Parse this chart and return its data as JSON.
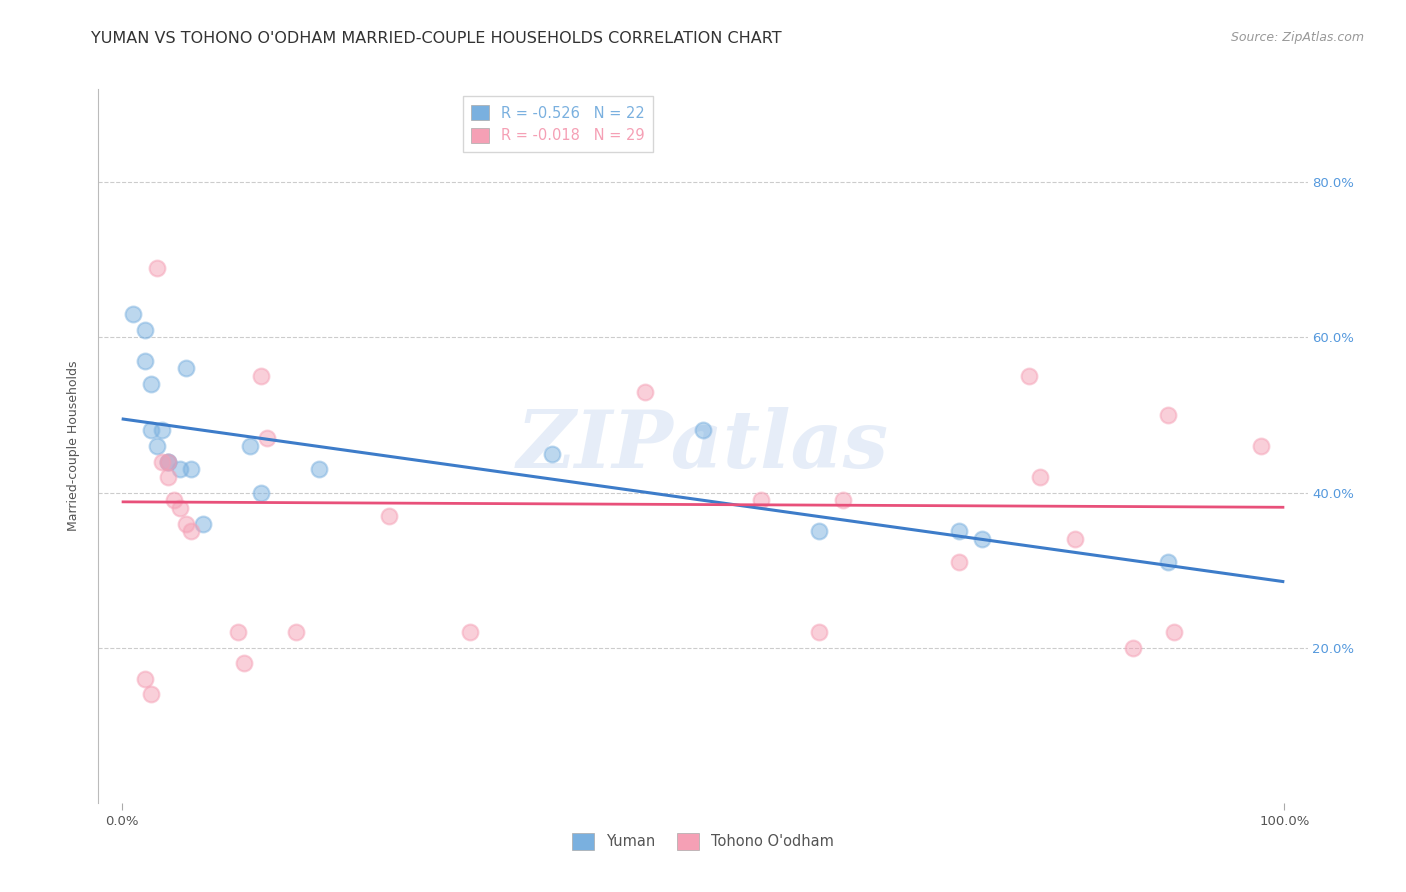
{
  "title": "YUMAN VS TOHONO O'ODHAM MARRIED-COUPLE HOUSEHOLDS CORRELATION CHART",
  "source": "Source: ZipAtlas.com",
  "ylabel": "Married-couple Households",
  "xlim": [
    -0.02,
    1.02
  ],
  "ylim": [
    0.0,
    0.92
  ],
  "xticks": [
    0.0,
    1.0
  ],
  "xtick_labels": [
    "0.0%",
    "100.0%"
  ],
  "yticks": [
    0.2,
    0.4,
    0.6,
    0.8
  ],
  "right_ytick_labels": [
    "20.0%",
    "40.0%",
    "60.0%",
    "80.0%"
  ],
  "background_color": "#ffffff",
  "grid_color": "#cccccc",
  "watermark": "ZIPatlas",
  "legend_r_lines": [
    {
      "label": "R = -0.526   N = 22",
      "color": "#7ab0df"
    },
    {
      "label": "R = -0.018   N = 29",
      "color": "#f5a0b5"
    }
  ],
  "series": [
    {
      "name": "Yuman",
      "color": "#7ab0df",
      "x": [
        0.01,
        0.02,
        0.02,
        0.025,
        0.025,
        0.03,
        0.035,
        0.04,
        0.04,
        0.05,
        0.055,
        0.06,
        0.07,
        0.11,
        0.12,
        0.17,
        0.37,
        0.5,
        0.6,
        0.72,
        0.74,
        0.9
      ],
      "y": [
        0.63,
        0.61,
        0.57,
        0.54,
        0.48,
        0.46,
        0.48,
        0.44,
        0.44,
        0.43,
        0.56,
        0.43,
        0.36,
        0.46,
        0.4,
        0.43,
        0.45,
        0.48,
        0.35,
        0.35,
        0.34,
        0.31
      ]
    },
    {
      "name": "Tohono O'odham",
      "color": "#f5a0b5",
      "x": [
        0.02,
        0.025,
        0.03,
        0.035,
        0.04,
        0.04,
        0.045,
        0.05,
        0.055,
        0.06,
        0.1,
        0.105,
        0.12,
        0.125,
        0.15,
        0.23,
        0.3,
        0.45,
        0.55,
        0.6,
        0.62,
        0.72,
        0.78,
        0.79,
        0.82,
        0.87,
        0.9,
        0.905,
        0.98
      ],
      "y": [
        0.16,
        0.14,
        0.69,
        0.44,
        0.44,
        0.42,
        0.39,
        0.38,
        0.36,
        0.35,
        0.22,
        0.18,
        0.55,
        0.47,
        0.22,
        0.37,
        0.22,
        0.53,
        0.39,
        0.22,
        0.39,
        0.31,
        0.55,
        0.42,
        0.34,
        0.2,
        0.5,
        0.22,
        0.46
      ]
    }
  ],
  "trend_lines": [
    {
      "name": "Yuman",
      "color": "#3d7cc9",
      "x_start": 0.0,
      "y_start": 0.495,
      "x_end": 1.0,
      "y_end": 0.285,
      "linewidth": 2.2
    },
    {
      "name": "Tohono O'odham",
      "color": "#e8507a",
      "x_start": 0.0,
      "y_start": 0.388,
      "x_end": 1.0,
      "y_end": 0.381,
      "linewidth": 2.0
    }
  ],
  "title_fontsize": 11.5,
  "source_fontsize": 9,
  "label_fontsize": 9,
  "tick_fontsize": 9.5,
  "legend_fontsize": 10.5,
  "marker_size": 130,
  "marker_alpha": 0.5,
  "marker_linewidth": 1.5,
  "right_ytick_color": "#5599dd"
}
